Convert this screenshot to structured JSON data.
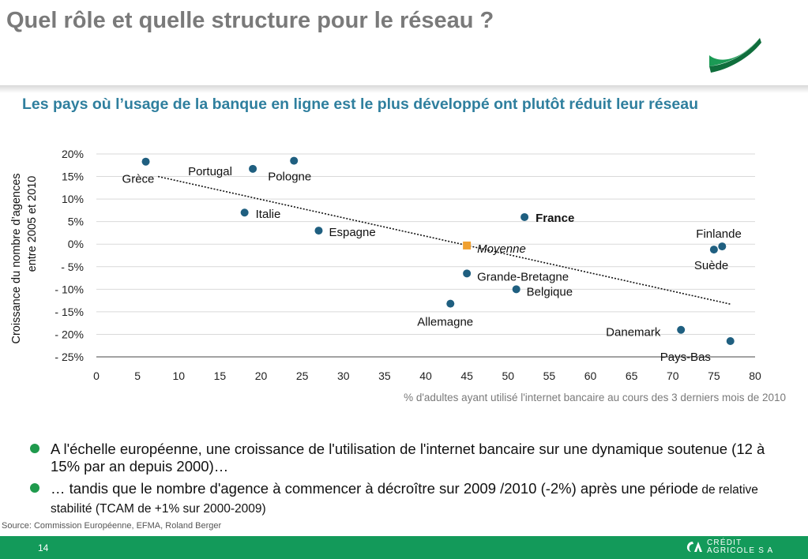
{
  "header": {
    "title": "Quel rôle et quelle structure pour le réseau ?"
  },
  "subtitle": "Les pays où l’usage de la banque en ligne est le plus développé ont plutôt réduit leur réseau",
  "chart_data": {
    "type": "scatter",
    "title": "",
    "xlabel": "% d'adultes ayant utilisé l'internet bancaire au cours des 3 derniers mois de 2010",
    "ylabel_lines": [
      "Croissance  du nombre  d’agences",
      "entre 2005  et 2010"
    ],
    "xlim": [
      0,
      80
    ],
    "ylim": [
      -25,
      20
    ],
    "x_ticks": [
      "0",
      "5",
      "10",
      "15",
      "20",
      "25",
      "30",
      "35",
      "40",
      "45",
      "50",
      "55",
      "60",
      "65",
      "70",
      "75",
      "80"
    ],
    "y_ticks": [
      "20%",
      "15%",
      "10%",
      "5%",
      "0%",
      "- 5%",
      "- 10%",
      "- 15%",
      "- 20%",
      "- 25%"
    ],
    "grid": "horizontal",
    "trendline": {
      "x": [
        7.5,
        77
      ],
      "y": [
        15.0,
        -13.3
      ]
    },
    "points": [
      {
        "label": "Grèce",
        "x": 6,
        "y": 18.3
      },
      {
        "label": "Portugal",
        "x": 19,
        "y": 16.7
      },
      {
        "label": "Pologne",
        "x": 24,
        "y": 18.5
      },
      {
        "label": "Italie",
        "x": 18,
        "y": 7.0
      },
      {
        "label": "Espagne",
        "x": 27,
        "y": 3.0
      },
      {
        "label": "France",
        "x": 52,
        "y": 6.0
      },
      {
        "label": "Moyenne",
        "x": 45,
        "y": -0.3
      },
      {
        "label": "Grande-Bretagne",
        "x": 45,
        "y": -6.5
      },
      {
        "label": "Belgique",
        "x": 51,
        "y": -10.0
      },
      {
        "label": "Allemagne",
        "x": 43,
        "y": -13.2
      },
      {
        "label": "Finlande",
        "x": 76,
        "y": -0.5
      },
      {
        "label": "Suède",
        "x": 75,
        "y": -1.2
      },
      {
        "label": "Danemark",
        "x": 71,
        "y": -19.0
      },
      {
        "label": "Pays-Bas",
        "x": 77,
        "y": -21.5
      }
    ],
    "colors": {
      "point": "#1f5f80",
      "average": "#f0a030",
      "trend": "#111111"
    }
  },
  "bullets": [
    {
      "main": "A l'échelle européenne, une croissance de l'utilisation de l'internet bancaire sur une dynamique soutenue (12 à 15% par an depuis 2000)…",
      "small": ""
    },
    {
      "main": "… tandis que le nombre d'agence à commencer à décroître sur 2009 /2010 (-2%) après une période",
      "small": " de relative stabilité (TCAM de +1% sur 2000-2009)"
    }
  ],
  "source": "Source:  Commission Européenne, EFMA, Roland Berger",
  "footer": {
    "page_number": "14",
    "brand_line1": "CRÉDIT",
    "brand_line2": "AGRICOLE S A",
    "color": "#139a5a"
  }
}
